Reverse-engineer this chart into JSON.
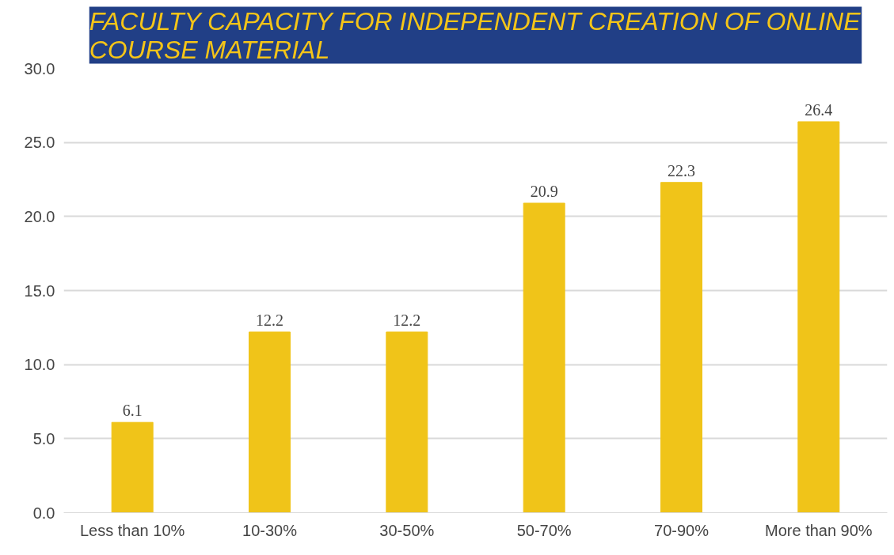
{
  "chart_data": {
    "type": "bar",
    "title": "FACULTY CAPACITY FOR INDEPENDENT CREATION OF ONLINE COURSE MATERIAL",
    "categories": [
      "Less than 10%",
      "10-30%",
      "30-50%",
      "50-70%",
      "70-90%",
      "More than 90%"
    ],
    "values": [
      6.1,
      12.2,
      12.2,
      20.9,
      22.3,
      26.4
    ],
    "color": "#f0c419",
    "ylim": [
      0,
      30
    ],
    "yticks": [
      {
        "value": 0,
        "label": "0.0"
      },
      {
        "value": 5,
        "label": "5.0"
      },
      {
        "value": 10,
        "label": "10.0"
      },
      {
        "value": 15,
        "label": "15.0"
      },
      {
        "value": 20,
        "label": "20.0"
      },
      {
        "value": 25,
        "label": "25.0"
      },
      {
        "value": 30,
        "label": "30.0"
      }
    ],
    "grid": "y",
    "data_labels": true
  }
}
